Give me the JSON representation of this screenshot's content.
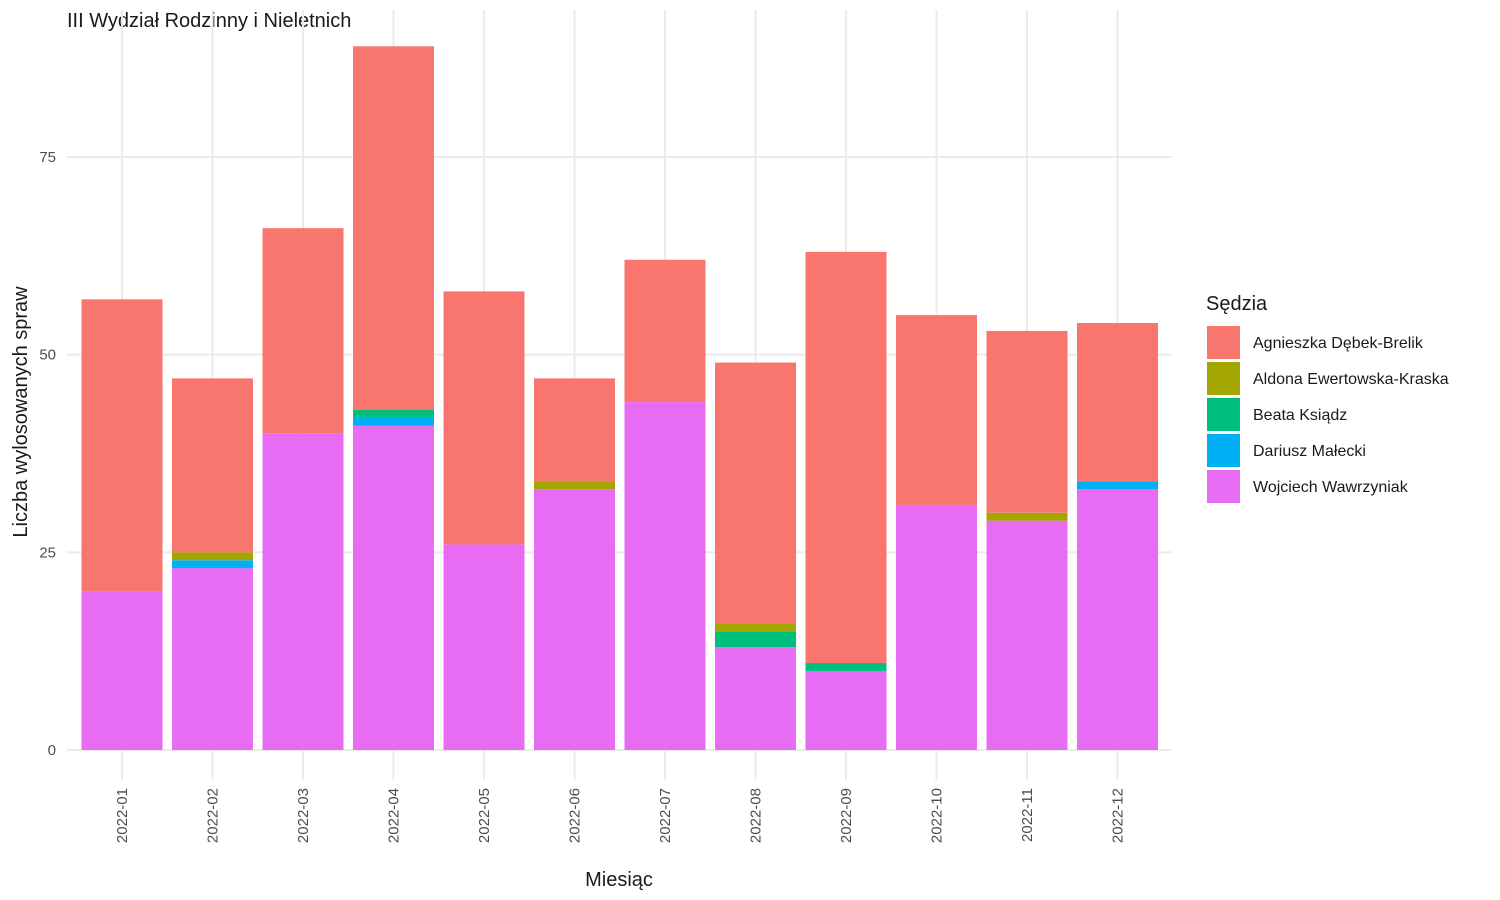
{
  "chart_data": {
    "type": "bar",
    "stacked": true,
    "title": "III Wydział Rodzinny i Nieletnich",
    "xlabel": "Miesiąc",
    "ylabel": "Liczba wylosowanych spraw",
    "ylim": [
      0,
      90
    ],
    "yticks": [
      0,
      25,
      50,
      75
    ],
    "grid": true,
    "legend_title": "Sędzia",
    "legend_position": "right",
    "categories": [
      "2022-01",
      "2022-02",
      "2022-03",
      "2022-04",
      "2022-05",
      "2022-06",
      "2022-07",
      "2022-08",
      "2022-09",
      "2022-10",
      "2022-11",
      "2022-12"
    ],
    "series": [
      {
        "name": "Wojciech Wawrzyniak",
        "color": "#E76BF3",
        "values": [
          20,
          23,
          40,
          41,
          26,
          33,
          44,
          13,
          10,
          31,
          29,
          33
        ]
      },
      {
        "name": "Dariusz Małecki",
        "color": "#00B0F6",
        "values": [
          0,
          1,
          0,
          1,
          0,
          0,
          0,
          0,
          0,
          0,
          0,
          1
        ]
      },
      {
        "name": "Beata Ksiądz",
        "color": "#00BF7D",
        "values": [
          0,
          0,
          0,
          1,
          0,
          0,
          0,
          2,
          1,
          0,
          0,
          0
        ]
      },
      {
        "name": "Aldona Ewertowska-Kraska",
        "color": "#A3A500",
        "values": [
          0,
          1,
          0,
          0,
          0,
          1,
          0,
          1,
          0,
          0,
          1,
          0
        ]
      },
      {
        "name": "Agnieszka Dębek-Brelik",
        "color": "#F8766D",
        "values": [
          37,
          22,
          26,
          46,
          32,
          13,
          18,
          33,
          52,
          24,
          23,
          20
        ]
      }
    ],
    "legend_order": [
      "Agnieszka Dębek-Brelik",
      "Aldona Ewertowska-Kraska",
      "Beata Ksiądz",
      "Dariusz Małecki",
      "Wojciech Wawrzyniak"
    ]
  }
}
